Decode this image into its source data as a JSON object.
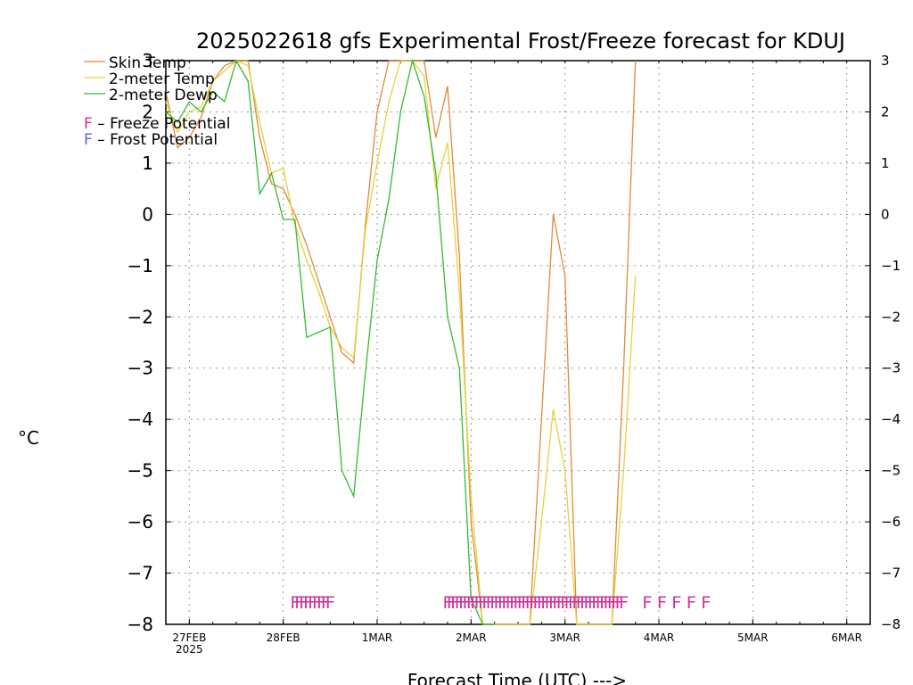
{
  "chart_data": {
    "type": "line",
    "title": "2025022618 gfs Experimental Frost/Freeze forecast for KDUJ",
    "xlabel": "Forecast Time (UTC) --->",
    "ylabel": "°C",
    "ylim": [
      -8,
      3
    ],
    "yticks": [
      "-8",
      "-7",
      "-6",
      "-5",
      "-4",
      "-3",
      "-2",
      "-1",
      "0",
      "1",
      "2",
      "3"
    ],
    "xlim": [
      "2025-02-26T18:00",
      "2025-03-06T06:00"
    ],
    "xticks": [
      {
        "t": "2025-02-27T00:00",
        "label": "27FEB",
        "sublabel": "2025"
      },
      {
        "t": "2025-02-28T00:00",
        "label": "28FEB",
        "sublabel": ""
      },
      {
        "t": "2025-03-01T00:00",
        "label": "1MAR",
        "sublabel": ""
      },
      {
        "t": "2025-03-02T00:00",
        "label": "2MAR",
        "sublabel": ""
      },
      {
        "t": "2025-03-03T00:00",
        "label": "3MAR",
        "sublabel": ""
      },
      {
        "t": "2025-03-04T00:00",
        "label": "4MAR",
        "sublabel": ""
      },
      {
        "t": "2025-03-05T00:00",
        "label": "5MAR",
        "sublabel": ""
      },
      {
        "t": "2025-03-06T00:00",
        "label": "6MAR",
        "sublabel": ""
      }
    ],
    "grid": true,
    "legend_position": "top-left",
    "series": [
      {
        "name": "Skin Temp",
        "color": "#e08a3a",
        "points": [
          [
            "2025-02-26T18:00",
            2.4
          ],
          [
            "2025-02-26T21:00",
            1.3
          ],
          [
            "2025-02-27T00:00",
            1.5
          ],
          [
            "2025-02-27T03:00",
            1.9
          ],
          [
            "2025-02-27T06:00",
            2.6
          ],
          [
            "2025-02-27T09:00",
            2.9
          ],
          [
            "2025-02-27T12:00",
            3.0
          ],
          [
            "2025-02-27T15:00",
            3.0
          ],
          [
            "2025-02-27T18:00",
            1.5
          ],
          [
            "2025-02-27T21:00",
            0.6
          ],
          [
            "2025-02-28T00:00",
            0.5
          ],
          [
            "2025-02-28T03:00",
            0.0
          ],
          [
            "2025-02-28T06:00",
            -0.6
          ],
          [
            "2025-02-28T09:00",
            -1.3
          ],
          [
            "2025-02-28T12:00",
            -2.0
          ],
          [
            "2025-02-28T15:00",
            -2.7
          ],
          [
            "2025-02-28T18:00",
            -2.9
          ],
          [
            "2025-02-28T21:00",
            -0.2
          ],
          [
            "2025-03-01T00:00",
            2.0
          ],
          [
            "2025-03-01T03:00",
            3.0
          ],
          [
            "2025-03-01T06:00",
            3.0
          ],
          [
            "2025-03-01T09:00",
            3.0
          ],
          [
            "2025-03-01T12:00",
            3.0
          ],
          [
            "2025-03-01T15:00",
            1.5
          ],
          [
            "2025-03-01T18:00",
            2.5
          ],
          [
            "2025-03-01T21:00",
            -0.8
          ],
          [
            "2025-03-02T00:00",
            -6.0
          ],
          [
            "2025-03-02T03:00",
            -8.0
          ],
          [
            "2025-03-02T06:00",
            -8.0
          ],
          [
            "2025-03-02T09:00",
            -8.0
          ],
          [
            "2025-03-02T12:00",
            -8.0
          ],
          [
            "2025-03-02T15:00",
            -8.0
          ],
          [
            "2025-03-02T18:00",
            -4.0
          ],
          [
            "2025-03-02T21:00",
            0.0
          ],
          [
            "2025-03-03T00:00",
            -1.2
          ],
          [
            "2025-03-03T03:00",
            -8.0
          ],
          [
            "2025-03-03T06:00",
            -8.0
          ],
          [
            "2025-03-03T09:00",
            -8.0
          ],
          [
            "2025-03-03T12:00",
            -8.0
          ],
          [
            "2025-03-03T15:00",
            -3.0
          ],
          [
            "2025-03-03T18:00",
            3.0
          ]
        ]
      },
      {
        "name": "2-meter Temp",
        "color": "#e6d23a",
        "points": [
          [
            "2025-02-26T18:00",
            2.2
          ],
          [
            "2025-02-26T21:00",
            1.6
          ],
          [
            "2025-02-27T00:00",
            2.0
          ],
          [
            "2025-02-27T03:00",
            2.1
          ],
          [
            "2025-02-27T06:00",
            2.6
          ],
          [
            "2025-02-27T09:00",
            2.8
          ],
          [
            "2025-02-27T12:00",
            3.0
          ],
          [
            "2025-02-27T15:00",
            2.9
          ],
          [
            "2025-02-27T18:00",
            1.8
          ],
          [
            "2025-02-27T21:00",
            0.8
          ],
          [
            "2025-02-28T00:00",
            0.9
          ],
          [
            "2025-02-28T03:00",
            -0.2
          ],
          [
            "2025-02-28T06:00",
            -0.9
          ],
          [
            "2025-02-28T09:00",
            -1.5
          ],
          [
            "2025-02-28T12:00",
            -2.2
          ],
          [
            "2025-02-28T15:00",
            -2.6
          ],
          [
            "2025-02-28T18:00",
            -2.8
          ],
          [
            "2025-02-28T21:00",
            -0.3
          ],
          [
            "2025-03-01T00:00",
            1.0
          ],
          [
            "2025-03-01T03:00",
            2.2
          ],
          [
            "2025-03-01T06:00",
            3.0
          ],
          [
            "2025-03-01T09:00",
            3.0
          ],
          [
            "2025-03-01T12:00",
            2.7
          ],
          [
            "2025-03-01T15:00",
            0.5
          ],
          [
            "2025-03-01T18:00",
            1.4
          ],
          [
            "2025-03-01T21:00",
            -1.5
          ],
          [
            "2025-03-02T00:00",
            -5.5
          ],
          [
            "2025-03-02T03:00",
            -8.0
          ],
          [
            "2025-03-02T06:00",
            -8.0
          ],
          [
            "2025-03-02T09:00",
            -8.0
          ],
          [
            "2025-03-02T12:00",
            -8.0
          ],
          [
            "2025-03-02T15:00",
            -8.0
          ],
          [
            "2025-03-02T18:00",
            -6.0
          ],
          [
            "2025-03-02T21:00",
            -3.8
          ],
          [
            "2025-03-03T00:00",
            -5.0
          ],
          [
            "2025-03-03T03:00",
            -8.0
          ],
          [
            "2025-03-03T06:00",
            -8.0
          ],
          [
            "2025-03-03T09:00",
            -8.0
          ],
          [
            "2025-03-03T12:00",
            -8.0
          ],
          [
            "2025-03-03T15:00",
            -5.0
          ],
          [
            "2025-03-03T18:00",
            -1.2
          ]
        ]
      },
      {
        "name": "2-meter Dewp",
        "color": "#33bb33",
        "points": [
          [
            "2025-02-26T18:00",
            2.0
          ],
          [
            "2025-02-26T21:00",
            1.8
          ],
          [
            "2025-02-27T00:00",
            2.2
          ],
          [
            "2025-02-27T03:00",
            2.0
          ],
          [
            "2025-02-27T06:00",
            2.4
          ],
          [
            "2025-02-27T09:00",
            2.2
          ],
          [
            "2025-02-27T12:00",
            3.0
          ],
          [
            "2025-02-27T15:00",
            2.6
          ],
          [
            "2025-02-27T18:00",
            0.4
          ],
          [
            "2025-02-27T21:00",
            0.8
          ],
          [
            "2025-02-28T00:00",
            -0.1
          ],
          [
            "2025-02-28T03:00",
            -0.1
          ],
          [
            "2025-02-28T06:00",
            -2.4
          ],
          [
            "2025-02-28T09:00",
            -2.3
          ],
          [
            "2025-02-28T12:00",
            -2.2
          ],
          [
            "2025-02-28T15:00",
            -5.0
          ],
          [
            "2025-02-28T18:00",
            -5.5
          ],
          [
            "2025-02-28T21:00",
            -3.1
          ],
          [
            "2025-03-01T00:00",
            -0.9
          ],
          [
            "2025-03-01T03:00",
            0.3
          ],
          [
            "2025-03-01T06:00",
            2.0
          ],
          [
            "2025-03-01T09:00",
            3.0
          ],
          [
            "2025-03-01T12:00",
            2.3
          ],
          [
            "2025-03-01T15:00",
            0.8
          ],
          [
            "2025-03-01T18:00",
            -2.0
          ],
          [
            "2025-03-01T21:00",
            -3.0
          ],
          [
            "2025-03-02T00:00",
            -7.5
          ],
          [
            "2025-03-02T03:00",
            -8.0
          ],
          [
            "2025-03-02T06:00",
            -8.0
          ]
        ]
      }
    ],
    "freeze_markers": {
      "color": "#cc3399",
      "groups": [
        {
          "start": "2025-02-28T03:00",
          "end": "2025-02-28T12:00",
          "count": 9
        },
        {
          "start": "2025-03-01T18:00",
          "end": "2025-03-03T15:00",
          "count": 46
        },
        {
          "start": "2025-03-03T21:00",
          "end": "2025-03-04T12:00",
          "count": 5
        }
      ]
    },
    "legend": [
      {
        "label": "Skin Temp",
        "color": "#e08a3a"
      },
      {
        "label": "2-meter Temp",
        "color": "#e6d23a"
      },
      {
        "label": "2-meter Dewp",
        "color": "#33bb33"
      }
    ],
    "annotations": [
      {
        "symbol": "F",
        "color": "#cc3399",
        "text": " – Freeze Potential"
      },
      {
        "symbol": "F",
        "color": "#5566dd",
        "text": " – Frost Potential"
      }
    ]
  }
}
